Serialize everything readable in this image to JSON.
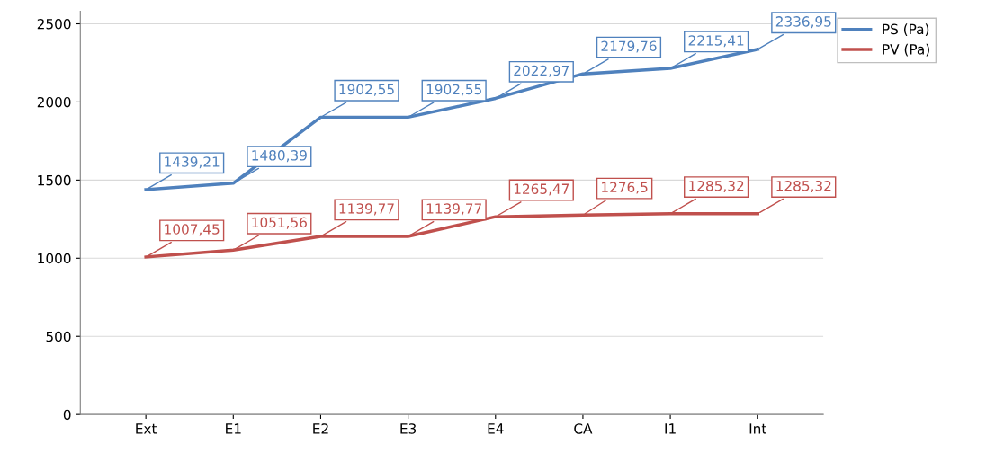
{
  "chart_data": {
    "type": "line",
    "categories": [
      "Ext",
      "E1",
      "E2",
      "E3",
      "E4",
      "CA",
      "I1",
      "Int"
    ],
    "series": [
      {
        "name": "PS (Pa)",
        "color": "#4f81bd",
        "values": [
          1439.21,
          1480.39,
          1902.55,
          1902.55,
          2022.97,
          2179.76,
          2215.41,
          2336.95
        ],
        "value_labels": [
          "1439,21",
          "1480,39",
          "1902,55",
          "1902,55",
          "2022,97",
          "2179,76",
          "2215,41",
          "2336,95"
        ]
      },
      {
        "name": "PV (Pa)",
        "color": "#c0504d",
        "values": [
          1007.45,
          1051.56,
          1139.77,
          1139.77,
          1265.47,
          1276.5,
          1285.32,
          1285.32
        ],
        "value_labels": [
          "1007,45",
          "1051,56",
          "1139,77",
          "1139,77",
          "1265,47",
          "1276,5",
          "1285,32",
          "1285,32"
        ]
      }
    ],
    "ylim": [
      0,
      2580
    ],
    "yticks": [
      0,
      500,
      1000,
      1500,
      2000,
      2500
    ],
    "grid": "y",
    "legend": "top right",
    "marker": "none",
    "line_style": "solid"
  }
}
